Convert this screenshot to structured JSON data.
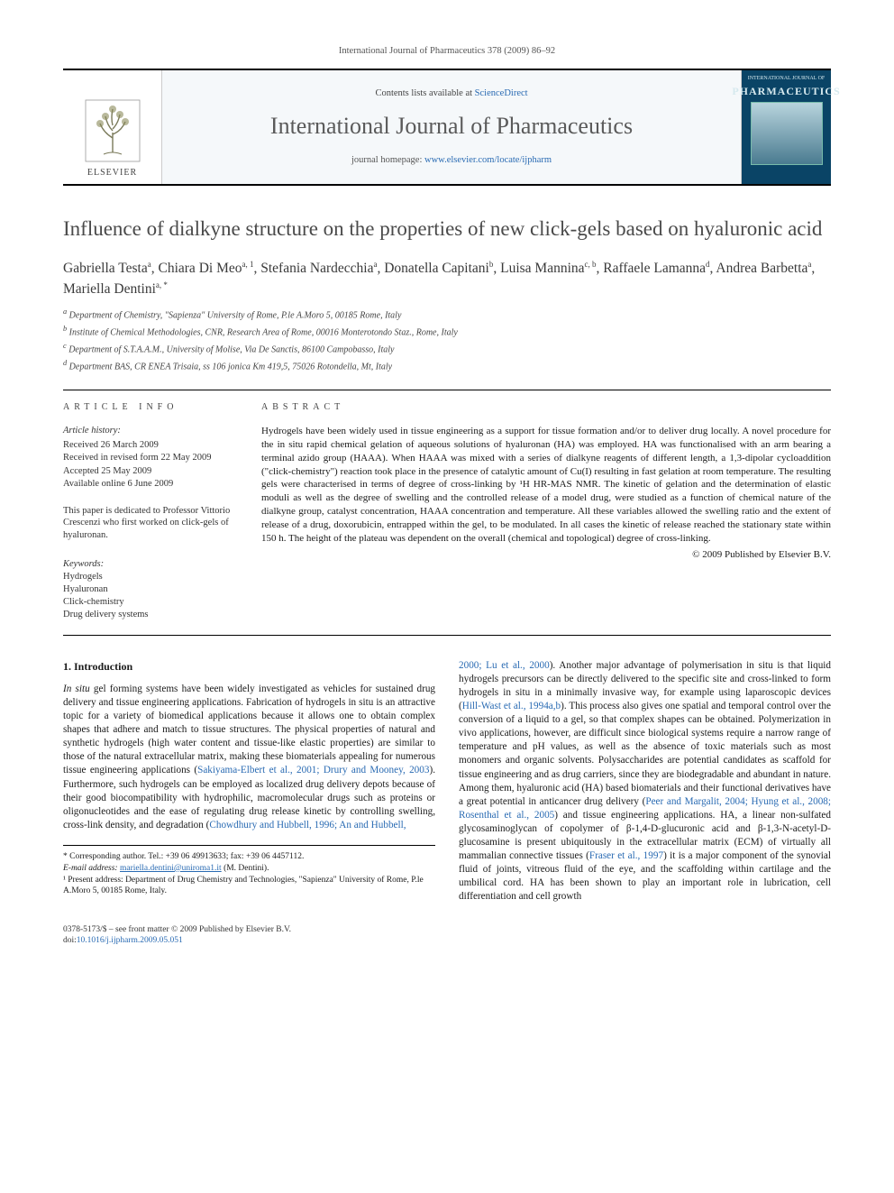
{
  "headerLine": "International Journal of Pharmaceutics 378 (2009) 86–92",
  "masthead": {
    "contentsPrefix": "Contents lists available at ",
    "contentsLink": "ScienceDirect",
    "journalTitle": "International Journal of Pharmaceutics",
    "homepagePrefix": "journal homepage: ",
    "homepageLink": "www.elsevier.com/locate/ijpharm",
    "publisher": "ELSEVIER",
    "coverTop": "INTERNATIONAL JOURNAL OF",
    "coverMain": "PHARMACEUTICS"
  },
  "article": {
    "title": "Influence of dialkyne structure on the properties of new click-gels based on hyaluronic acid",
    "authorsHtml": "Gabriella Testa<sup>a</sup>, Chiara Di Meo<sup>a, 1</sup>, Stefania Nardecchia<sup>a</sup>, Donatella Capitani<sup>b</sup>, Luisa Mannina<sup>c, b</sup>, Raffaele Lamanna<sup>d</sup>, Andrea Barbetta<sup>a</sup>, Mariella Dentini<sup>a, *</sup>",
    "affiliations": [
      "a Department of Chemistry, \"Sapienza\" University of Rome, P.le A.Moro 5, 00185 Rome, Italy",
      "b Institute of Chemical Methodologies, CNR, Research Area of Rome, 00016 Monterotondo Staz., Rome, Italy",
      "c Department of S.T.A.A.M., University of Molise, Via De Sanctis, 86100 Campobasso, Italy",
      "d Department BAS, CR ENEA Trisaia, ss 106 jonica Km 419,5, 75026 Rotondella, Mt, Italy"
    ]
  },
  "info": {
    "label": "ARTICLE INFO",
    "historyHead": "Article history:",
    "history": [
      "Received 26 March 2009",
      "Received in revised form 22 May 2009",
      "Accepted 25 May 2009",
      "Available online 6 June 2009"
    ],
    "dedication": "This paper is dedicated to Professor Vittorio Crescenzi who first worked on click-gels of hyaluronan.",
    "keywordsHead": "Keywords:",
    "keywords": [
      "Hydrogels",
      "Hyaluronan",
      "Click-chemistry",
      "Drug delivery systems"
    ]
  },
  "abstract": {
    "label": "ABSTRACT",
    "text": "Hydrogels have been widely used in tissue engineering as a support for tissue formation and/or to deliver drug locally. A novel procedure for the in situ rapid chemical gelation of aqueous solutions of hyaluronan (HA) was employed. HA was functionalised with an arm bearing a terminal azido group (HAAA). When HAAA was mixed with a series of dialkyne reagents of different length, a 1,3-dipolar cycloaddition (\"click-chemistry\") reaction took place in the presence of catalytic amount of Cu(I) resulting in fast gelation at room temperature. The resulting gels were characterised in terms of degree of cross-linking by ¹H HR-MAS NMR. The kinetic of gelation and the determination of elastic moduli as well as the degree of swelling and the controlled release of a model drug, were studied as a function of chemical nature of the dialkyne group, catalyst concentration, HAAA concentration and temperature. All these variables allowed the swelling ratio and the extent of release of a drug, doxorubicin, entrapped within the gel, to be modulated. In all cases the kinetic of release reached the stationary state within 150 h. The height of the plateau was dependent on the overall (chemical and topological) degree of cross-linking.",
    "copyright": "© 2009 Published by Elsevier B.V."
  },
  "section1": {
    "head": "1. Introduction",
    "para": "In situ gel forming systems have been widely investigated as vehicles for sustained drug delivery and tissue engineering applications. Fabrication of hydrogels in situ is an attractive topic for a variety of biomedical applications because it allows one to obtain complex shapes that adhere and match to tissue structures. The physical properties of natural and synthetic hydrogels (high water content and tissue-like elastic properties) are similar to those of the natural extracellular matrix, making these biomaterials appealing for numerous tissue engineering applications (",
    "ref1": "Sakiyama-Elbert et al., 2001; Drury and Mooney, 2003",
    "para2": "). Furthermore, such hydrogels can be employed as localized drug delivery depots because of their good biocompatibility with hydrophilic, macromolecular drugs such as proteins or oligonucleotides and the ease of regulating drug release kinetic by controlling swelling, cross-link density, and degradation (",
    "ref2": "Chowdhury and Hubbell, 1996; An and Hubbell,",
    "para3a": "2000; Lu et al., 2000",
    "para3": "). Another major advantage of polymerisation in situ is that liquid hydrogels precursors can be directly delivered to the specific site and cross-linked to form hydrogels in situ in a minimally invasive way, for example using laparoscopic devices (",
    "ref3": "Hill-Wast et al., 1994a,b",
    "para4": "). This process also gives one spatial and temporal control over the conversion of a liquid to a gel, so that complex shapes can be obtained. Polymerization in vivo applications, however, are difficult since biological systems require a narrow range of temperature and pH values, as well as the absence of toxic materials such as most monomers and organic solvents. Polysaccharides are potential candidates as scaffold for tissue engineering and as drug carriers, since they are biodegradable and abundant in nature. Among them, hyaluronic acid (HA) based biomaterials and their functional derivatives have a great potential in anticancer drug delivery (",
    "ref4": "Peer and Margalit, 2004; Hyung et al., 2008; Rosenthal et al., 2005",
    "para5": ") and tissue engineering applications. HA, a linear non-sulfated glycosaminoglycan of copolymer of β-1,4-D-glucuronic acid and β-1,3-N-acetyl-D-glucosamine is present ubiquitously in the extracellular matrix (ECM) of virtually all mammalian connective tissues (",
    "ref5": "Fraser et al., 1997",
    "para6": ") it is a major component of the synovial fluid of joints, vitreous fluid of the eye, and the scaffolding within cartilage and the umbilical cord. HA has been shown to play an important role in lubrication, cell differentiation and cell growth"
  },
  "footnotes": {
    "corr": "* Corresponding author. Tel.: +39 06 49913633; fax: +39 06 4457112.",
    "emailLabel": "E-mail address: ",
    "email": "mariella.dentini@uniroma1.it",
    "emailSuffix": " (M. Dentini).",
    "note1": "¹ Present address: Department of Drug Chemistry and Technologies, \"Sapienza\" University of Rome, P.le A.Moro 5, 00185 Rome, Italy."
  },
  "bottom": {
    "front": "0378-5173/$ – see front matter © 2009 Published by Elsevier B.V.",
    "doiLabel": "doi:",
    "doi": "10.1016/j.ijpharm.2009.05.051"
  },
  "colors": {
    "link": "#2a6bb3",
    "titleGray": "#4a4a4a",
    "coverBg": "#0a4466"
  }
}
